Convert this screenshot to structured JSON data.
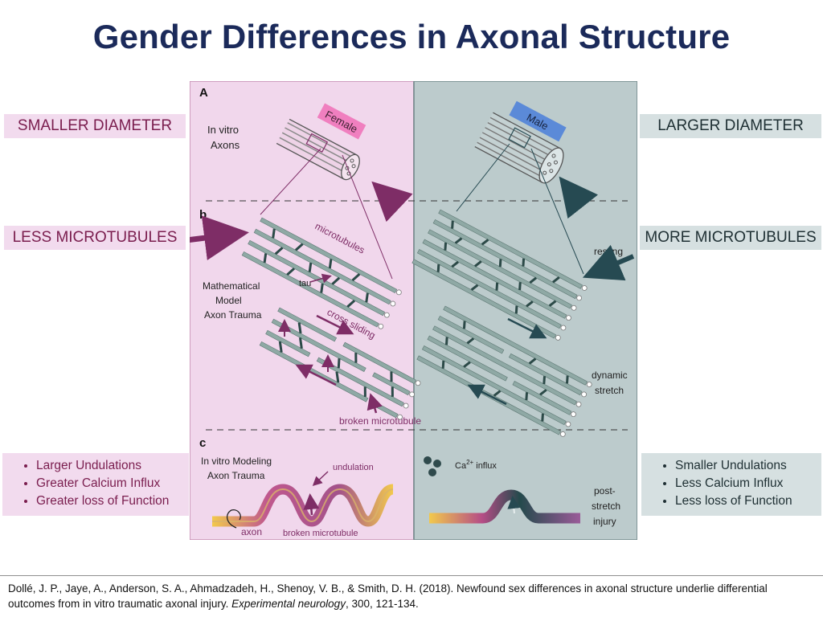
{
  "slide": {
    "title": "Gender Differences in Axonal Structure"
  },
  "left_labels": {
    "diameter": "SMALLER DIAMETER",
    "microtubules": "LESS MICROTUBULES",
    "bullets": [
      "Larger Undulations",
      "Greater Calcium Influx",
      "Greater loss of Function"
    ]
  },
  "right_labels": {
    "diameter": "LARGER DIAMETER",
    "microtubules": "MORE MICROTUBULES",
    "bullets": [
      "Smaller Undulations",
      "Less Calcium Influx",
      "Less loss of Function"
    ]
  },
  "figure": {
    "panel_a": "A",
    "panel_b": "b",
    "panel_c": "c",
    "in_vitro_axons_1": "In vitro",
    "in_vitro_axons_2": "Axons",
    "female_tag": "Female",
    "male_tag": "Male",
    "microtubules_label": "microtubules",
    "tau_label": "tau",
    "math_model_1": "Mathematical",
    "math_model_2": "Model",
    "math_model_3": "Axon Trauma",
    "cross_sliding": "cross sliding",
    "broken_microtubule": "broken microtubule",
    "resting": "resting",
    "dynamic_1": "dynamic",
    "dynamic_2": "stretch",
    "modeling_1": "In vitro Modeling",
    "modeling_2": "Axon Trauma",
    "undulation": "undulation",
    "axon": "axon",
    "broken_microtubule_c": "broken microtubule",
    "ca_influx_sup": "2+",
    "ca_influx_pre": "Ca",
    "ca_influx_post": " influx",
    "post_stretch_1": "post-",
    "post_stretch_2": "stretch",
    "post_stretch_3": "injury",
    "colors": {
      "female_panel": "#f1d7ec",
      "male_panel": "#bccbcc",
      "microtubule": "#8fa9a5",
      "tau": "#2c4a48",
      "female_arrow": "#7e2d66",
      "male_arrow": "#264a52"
    }
  },
  "reference": {
    "line1_pre": "Dollé, J. P., Jaye, A., Anderson, S. A., Ahmadzadeh, H., Shenoy, V. B., & Smith, D. H. (2018). Newfound sex differences in axonal structure underlie differential",
    "line2_pre": "outcomes from in vitro traumatic axonal injury. ",
    "journal": "Experimental neurology",
    "line2_post": ", 300, 121-134."
  }
}
